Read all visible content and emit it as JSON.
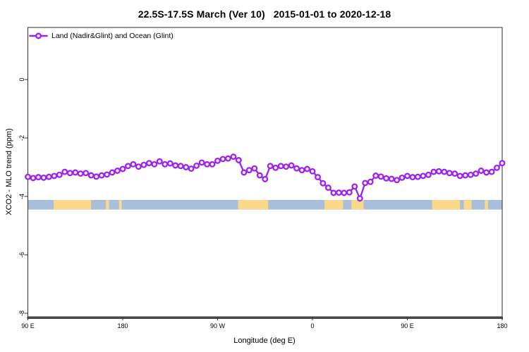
{
  "title": "22.5S-17.5S March (Ver 10)   2015-01-01 to 2020-12-18",
  "legend": {
    "label": "Land (Nadir&Glint) and Ocean (Glint)"
  },
  "axes": {
    "x": {
      "label": "Longitude (deg E)",
      "ticks": [
        {
          "value": 90,
          "label": "90 E"
        },
        {
          "value": 180,
          "label": "180"
        },
        {
          "value": 270,
          "label": "90 W"
        },
        {
          "value": 360,
          "label": "0"
        },
        {
          "value": 450,
          "label": "90 E"
        },
        {
          "value": 540,
          "label": "180"
        }
      ]
    },
    "y": {
      "label": "XCO2 - MLO trend (ppm)",
      "ticks": [
        {
          "value": 0,
          "label": "0"
        },
        {
          "value": -2,
          "label": "-2"
        },
        {
          "value": -4,
          "label": "-4"
        },
        {
          "value": -6,
          "label": "-6"
        },
        {
          "value": -8,
          "label": "-8"
        }
      ]
    }
  },
  "colors": {
    "series": "#a020f0",
    "ocean": "#a9bedb",
    "land": "#fad98c",
    "axis": "#2e2e2e",
    "baseline": "#474747"
  },
  "chart_data": {
    "type": "line",
    "title": "22.5S-17.5S March (Ver 10)   2015-01-01 to 2020-12-18",
    "xlabel": "Longitude (deg E)",
    "ylabel": "XCO2 - MLO trend (ppm)",
    "x_axis_note": "longitude in degrees east, increasing eastward from 90E across the dateline and prime meridian back to 180 (plotted as 90..540)",
    "xlim": [
      90,
      540
    ],
    "ylim": [
      -8.2,
      1.8
    ],
    "grid": false,
    "legend_position": "top-left",
    "x": [
      90,
      95,
      100,
      105,
      110,
      115,
      120,
      125,
      130,
      135,
      140,
      145,
      150,
      155,
      160,
      165,
      170,
      175,
      180,
      185,
      190,
      195,
      200,
      205,
      210,
      215,
      220,
      225,
      230,
      235,
      240,
      245,
      250,
      255,
      260,
      265,
      270,
      275,
      280,
      285,
      290,
      295,
      300,
      305,
      310,
      315,
      320,
      325,
      330,
      335,
      340,
      345,
      350,
      355,
      360,
      365,
      370,
      375,
      380,
      385,
      390,
      395,
      400,
      405,
      410,
      415,
      420,
      425,
      430,
      435,
      440,
      445,
      450,
      455,
      460,
      465,
      470,
      475,
      480,
      485,
      490,
      495,
      500,
      505,
      510,
      515,
      520,
      525,
      530,
      535,
      540
    ],
    "series": [
      {
        "name": "Land (Nadir&Glint) and Ocean (Glint)",
        "color": "#a020f0",
        "marker": "open-circle",
        "values": [
          -3.33,
          -3.37,
          -3.34,
          -3.36,
          -3.33,
          -3.3,
          -3.26,
          -3.16,
          -3.2,
          -3.18,
          -3.22,
          -3.2,
          -3.28,
          -3.32,
          -3.28,
          -3.25,
          -3.18,
          -3.12,
          -3.06,
          -2.96,
          -2.9,
          -2.98,
          -2.92,
          -2.86,
          -2.9,
          -2.8,
          -2.9,
          -2.87,
          -2.94,
          -2.96,
          -3.0,
          -3.05,
          -2.95,
          -2.84,
          -2.9,
          -2.9,
          -2.78,
          -2.72,
          -2.7,
          -2.64,
          -2.76,
          -3.18,
          -3.1,
          -3.04,
          -3.28,
          -3.41,
          -2.96,
          -3.02,
          -2.96,
          -2.98,
          -2.94,
          -3.04,
          -3.1,
          -3.06,
          -3.14,
          -3.34,
          -3.55,
          -3.7,
          -3.88,
          -3.87,
          -3.88,
          -3.86,
          -3.66,
          -4.07,
          -3.54,
          -3.5,
          -3.29,
          -3.32,
          -3.38,
          -3.4,
          -3.44,
          -3.36,
          -3.3,
          -3.34,
          -3.33,
          -3.3,
          -3.26,
          -3.16,
          -3.14,
          -3.16,
          -3.2,
          -3.22,
          -3.3,
          -3.28,
          -3.26,
          -3.22,
          -3.12,
          -3.18,
          -3.16,
          -3.02,
          -2.86
        ]
      }
    ],
    "map_strip": {
      "description": "land/ocean map strip for latitude band 22.5S-17.5S",
      "ppm_top": -4.12,
      "ppm_bottom": -4.45,
      "ocean_color": "#a9bedb",
      "land_color": "#fad98c",
      "land_segments_deg_east": [
        [
          114.5,
          150
        ],
        [
          164,
          167
        ],
        [
          176.5,
          179
        ],
        [
          289.5,
          318
        ],
        [
          371.5,
          389
        ],
        [
          397,
          408.5
        ],
        [
          473.5,
          500
        ],
        [
          503.5,
          511
        ],
        [
          523.5,
          526.5
        ]
      ]
    }
  }
}
